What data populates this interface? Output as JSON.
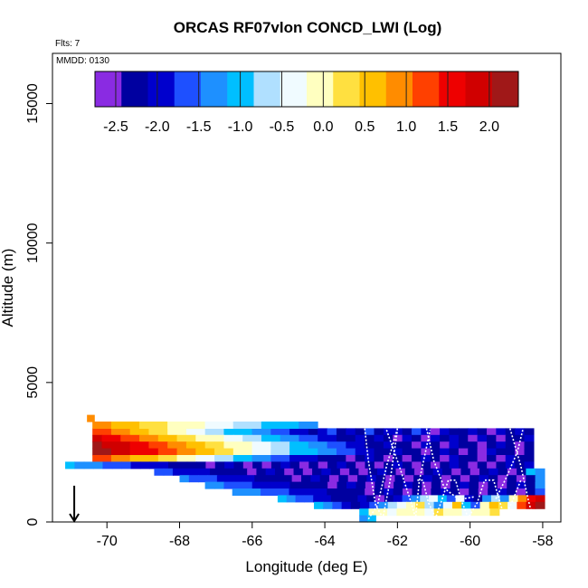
{
  "chart_data": {
    "type": "heatmap",
    "title": "ORCAS RF07vlon CONCD_LWI (Log)",
    "annotations": {
      "flights": "Flts: 7",
      "date": "MMDD: 0130"
    },
    "xlabel": "Longitude (deg E)",
    "ylabel": "Altitude (m)",
    "xlim": [
      -71.5,
      -57.5
    ],
    "ylim": [
      0,
      16800
    ],
    "x_ticks": [
      -70,
      -68,
      -66,
      -64,
      -62,
      -60,
      -58
    ],
    "x_tick_labels": [
      "-70",
      "-68",
      "-66",
      "-64",
      "-62",
      "-60",
      "-58"
    ],
    "y_ticks": [
      0,
      5000,
      10000,
      15000
    ],
    "y_tick_labels": [
      "0",
      "5000",
      "10000",
      "15000"
    ],
    "colorbar": {
      "range": [
        -2.75,
        2.35
      ],
      "ticks": [
        -2.5,
        -2.0,
        -1.5,
        -1.0,
        -0.5,
        0.0,
        0.5,
        1.0,
        1.5,
        2.0
      ],
      "tick_labels": [
        "-2.5",
        "-2.0",
        "-1.5",
        "-1.0",
        "-0.5",
        "0.0",
        "0.5",
        "1.0",
        "1.5",
        "2.0"
      ],
      "colors": [
        "#8a2be2",
        "#0000a0",
        "#0000cd",
        "#1e50ff",
        "#1e90ff",
        "#00bfff",
        "#b0e0ff",
        "#f0fbff",
        "#ffffc0",
        "#ffe040",
        "#ffc000",
        "#ff8c00",
        "#ff4000",
        "#ee0000",
        "#d00000",
        "#a01818"
      ]
    },
    "marker": {
      "type": "arrow-down",
      "longitude": -70.9,
      "altitude": 550
    },
    "cell_size": {
      "dlon": 0.26,
      "dalt": 240
    },
    "cell_rows": [
      {
        "alt": 3120,
        "lon_start": -70.4,
        "lon_end": -58.25,
        "values": [
          1.3,
          1.1,
          0.95,
          0.8,
          0.65,
          0.5,
          0.35,
          0.2,
          0.05,
          -0.1,
          -0.25,
          -0.4,
          -0.55,
          -0.7,
          -0.85,
          -1.0,
          -1.15,
          -1.3,
          -1.45,
          -1.6,
          -1.75,
          -1.9,
          -2.05,
          -2.2,
          -2.1,
          -1.7,
          -2.3,
          -1.9,
          -2.2,
          -1.6,
          -2.4,
          -1.8,
          -2.0,
          -2.3,
          -1.7,
          -2.1,
          -2.5,
          -1.9,
          -2.2,
          -2.4,
          -2.0,
          -2.3,
          -2.6,
          -2.1,
          -2.4,
          -1.8,
          -2.2
        ]
      },
      {
        "alt": 2880,
        "lon_start": -70.4,
        "lon_end": -58.25,
        "values": [
          1.8,
          1.6,
          1.45,
          1.3,
          1.15,
          1.0,
          0.85,
          0.7,
          0.55,
          0.4,
          0.25,
          0.1,
          -0.05,
          -0.2,
          -0.35,
          -0.5,
          -0.65,
          -0.8,
          -0.95,
          -1.1,
          -1.25,
          -1.4,
          -1.55,
          -1.7,
          -1.85,
          -2.0,
          -2.15,
          -2.3,
          -2.1,
          -2.4,
          -1.9,
          -2.2,
          -2.5,
          -2.0,
          -2.3,
          -2.6,
          -2.1,
          -2.4,
          -1.8,
          -2.2,
          -2.5,
          -2.0,
          -2.3,
          -2.6,
          -2.2,
          -2.4,
          -2.0
        ]
      },
      {
        "alt": 2640,
        "lon_start": -70.4,
        "lon_end": -58.25,
        "values": [
          2.1,
          2.0,
          1.9,
          1.75,
          1.6,
          1.45,
          1.3,
          1.15,
          1.0,
          0.85,
          0.7,
          0.55,
          0.4,
          0.25,
          0.1,
          -0.05,
          -0.2,
          -0.35,
          -0.5,
          -0.65,
          -0.8,
          -0.95,
          -1.1,
          -1.25,
          -1.4,
          -1.55,
          -1.7,
          -1.85,
          -2.0,
          -2.15,
          -2.3,
          -2.1,
          -2.4,
          -2.2,
          -2.5,
          -2.0,
          -2.3,
          -2.6,
          -2.1,
          -2.4,
          -2.2,
          -2.5,
          -2.3,
          -2.0,
          -2.4,
          -2.6,
          -2.2
        ]
      },
      {
        "alt": 2400,
        "lon_start": -70.4,
        "lon_end": -58.25,
        "values": [
          2.2,
          2.1,
          2.0,
          1.85,
          1.7,
          1.55,
          1.4,
          1.25,
          1.1,
          0.95,
          0.8,
          0.65,
          0.5,
          0.35,
          0.2,
          0.05,
          -0.1,
          -0.25,
          -0.4,
          -0.55,
          -0.7,
          -0.85,
          -1.0,
          -1.15,
          -1.3,
          -1.45,
          -1.6,
          -1.75,
          -1.9,
          -2.05,
          -2.2,
          -2.35,
          -2.1,
          -2.4,
          -2.2,
          -2.5,
          -2.3,
          -2.0,
          -2.4,
          -2.6,
          -2.2,
          -2.5,
          -2.1,
          -2.4,
          -2.3,
          -2.6,
          -2.2
        ]
      },
      {
        "alt": 2160,
        "lon_start": -70.4,
        "lon_end": -58.25,
        "values": [
          1.3,
          1.2,
          1.05,
          0.9,
          0.75,
          0.6,
          0.45,
          0.3,
          0.15,
          0.0,
          -0.15,
          -0.3,
          -0.45,
          -0.6,
          -0.75,
          -0.9,
          -1.05,
          -1.2,
          -1.35,
          -1.5,
          -1.65,
          -1.8,
          -1.95,
          -2.1,
          -2.25,
          -2.4,
          -2.2,
          -2.5,
          -2.3,
          -2.1,
          -2.4,
          -2.6,
          -2.2,
          -2.5,
          -2.3,
          -2.0,
          -2.4,
          -2.6,
          -2.1,
          -2.4,
          -2.2,
          -2.5,
          -2.3,
          -2.6,
          -2.1,
          -2.4,
          -2.2
        ]
      },
      {
        "alt": 1920,
        "lon_start": -71.15,
        "lon_end": -58.25,
        "values": [
          -1.1,
          -1.2,
          -1.3,
          -1.4,
          -1.5,
          -1.6,
          -1.7,
          -1.8,
          -1.9,
          -2.0,
          -2.1,
          -2.2,
          -2.3,
          -2.4,
          -2.2,
          -2.5,
          -2.3,
          -2.1,
          -2.4,
          -2.6,
          -2.2,
          -2.5,
          -2.3,
          -2.0,
          -2.4,
          -2.6,
          -2.2,
          -2.5,
          -2.3,
          -2.1,
          -2.4,
          -2.6,
          -2.2,
          -2.5,
          -2.3,
          -2.0,
          -2.4,
          -2.6,
          -2.2,
          -2.5,
          -2.3,
          -2.1,
          -2.4,
          -2.6,
          -2.2,
          -2.5,
          -2.3,
          -2.0,
          -2.4,
          -2.1
        ]
      },
      {
        "alt": 1680,
        "lon_start": -68.7,
        "lon_end": -57.95,
        "values": [
          -1.6,
          -1.7,
          -1.8,
          -1.9,
          -2.0,
          -2.1,
          -2.2,
          -2.3,
          -2.4,
          -2.2,
          -2.5,
          -2.3,
          -2.1,
          -2.4,
          -2.6,
          -2.2,
          -2.5,
          -2.3,
          -2.0,
          -2.4,
          -2.6,
          -2.2,
          -2.5,
          -2.3,
          -2.1,
          -2.4,
          -2.6,
          -2.2,
          -2.5,
          -2.3,
          -2.0,
          -2.4,
          -2.6,
          -2.2,
          -2.5,
          -2.3,
          -2.1,
          -2.4,
          -2.6,
          -2.2,
          -1.0,
          -1.4
        ]
      },
      {
        "alt": 1440,
        "lon_start": -68.0,
        "lon_end": -57.95,
        "values": [
          -1.4,
          -1.5,
          -1.6,
          -1.7,
          -1.8,
          -1.9,
          -2.0,
          -2.1,
          -2.2,
          -2.3,
          -2.4,
          -2.2,
          -2.5,
          -2.3,
          -2.1,
          -2.4,
          -2.6,
          -2.2,
          -2.5,
          -2.3,
          -2.0,
          -2.4,
          -2.6,
          -2.2,
          -2.5,
          -2.3,
          -2.1,
          -2.4,
          -2.6,
          -2.2,
          -2.5,
          -2.3,
          -2.0,
          -2.4,
          -2.6,
          -2.2,
          -2.5,
          -2.3,
          -1.2
        ]
      },
      {
        "alt": 1200,
        "lon_start": -67.3,
        "lon_end": -57.95,
        "values": [
          -1.3,
          -1.4,
          -1.5,
          -1.6,
          -1.7,
          -1.8,
          -1.9,
          -2.0,
          -2.1,
          -2.2,
          -2.3,
          -2.4,
          -2.2,
          -2.5,
          -2.3,
          -2.1,
          -2.4,
          -2.6,
          -2.2,
          -2.5,
          -2.3,
          -2.0,
          -2.4,
          -2.6,
          -2.2,
          -2.5,
          -2.3,
          -2.1,
          -2.4,
          -2.6,
          -2.2,
          -2.5,
          -2.3,
          -2.0,
          -2.4,
          -1.4
        ]
      },
      {
        "alt": 960,
        "lon_start": -66.55,
        "lon_end": -57.95,
        "values": [
          -1.2,
          -1.3,
          -1.4,
          -1.5,
          -1.6,
          -1.7,
          -1.8,
          -1.9,
          -2.0,
          -2.1,
          -2.2,
          -2.3,
          -2.4,
          -2.2,
          -2.5,
          -2.3,
          -2.1,
          -2.4,
          -2.6,
          -2.2,
          -2.5,
          -2.3,
          -2.0,
          -2.4,
          -2.6,
          -2.2,
          -2.5,
          -2.3,
          -2.1,
          -2.4,
          -2.6,
          -2.2,
          -1.6
        ]
      },
      {
        "alt": 720,
        "lon_start": -65.3,
        "lon_end": -57.95,
        "values": [
          -1.1,
          -1.3,
          -1.5,
          -1.7,
          -1.9,
          -2.1,
          -2.3,
          -2.2,
          -2.4,
          -2.1,
          -2.3,
          -2.5,
          -2.2,
          -2.0,
          -1.6,
          -1.2,
          -0.8,
          -0.4,
          -1.0,
          -1.6,
          -0.3,
          -1.8,
          -2.2,
          -1.2,
          -0.6,
          -1.4,
          -0.2,
          1.0,
          1.4,
          1.8
        ]
      },
      {
        "alt": 480,
        "lon_start": -64.3,
        "lon_end": -57.95,
        "values": [
          -1.1,
          -1.4,
          -1.7,
          -2.0,
          -2.3,
          -2.0,
          -1.6,
          -1.2,
          -0.8,
          -0.4,
          -0.1,
          0.2,
          -0.6,
          -1.2,
          -0.3,
          0.5,
          -1.0,
          -1.6,
          0.0,
          0.6,
          0.3,
          -0.4,
          1.3,
          1.9,
          2.1
        ]
      },
      {
        "alt": 240,
        "lon_start": -63.05,
        "lon_end": -59.2,
        "values": [
          -1.0,
          -0.2,
          0.0,
          -0.3,
          0.1,
          -0.1,
          0.0,
          -0.4,
          0.2,
          -0.2,
          0.1,
          -0.3,
          0.0,
          -0.1,
          0.2
        ]
      },
      {
        "alt": 0,
        "lon_start": -63.05,
        "lon_end": -62.6,
        "values": [
          -1.2,
          -1.0
        ]
      },
      {
        "alt": 3360,
        "lon_start": -70.4,
        "lon_end": -64.2,
        "values": [
          0.9,
          0.8,
          0.7,
          0.6,
          0.5,
          0.4,
          0.3,
          0.2,
          0.1,
          0.0,
          -0.1,
          -0.2,
          -0.3,
          -0.4,
          -0.5,
          -0.6,
          -0.7,
          -0.8,
          -0.9,
          -1.0,
          -1.1,
          -1.0,
          -1.2,
          -1.3
        ]
      },
      {
        "alt": 3600,
        "lon_start": -70.55,
        "lon_end": -70.35,
        "values": [
          1.0
        ]
      }
    ],
    "flight_tracks": [
      [
        [
          -62.9,
          3350
        ],
        [
          -62.8,
          2200
        ],
        [
          -62.6,
          600
        ],
        [
          -62.4,
          150
        ],
        [
          -62.2,
          1500
        ],
        [
          -62.0,
          3300
        ]
      ],
      [
        [
          -62.3,
          3300
        ],
        [
          -61.95,
          2000
        ],
        [
          -61.65,
          800
        ],
        [
          -61.5,
          150
        ],
        [
          -61.4,
          1450
        ],
        [
          -61.1,
          3300
        ]
      ],
      [
        [
          -61.2,
          3350
        ],
        [
          -61.0,
          2200
        ],
        [
          -60.7,
          1200
        ],
        [
          -60.3,
          800
        ],
        [
          -59.9,
          900
        ]
      ],
      [
        [
          -62.0,
          3350
        ],
        [
          -62.3,
          2000
        ],
        [
          -62.55,
          600
        ],
        [
          -62.8,
          100
        ]
      ],
      [
        [
          -61.45,
          1500
        ],
        [
          -61.3,
          1500
        ],
        [
          -61.15,
          700
        ],
        [
          -60.95,
          150
        ],
        [
          -60.8,
          700
        ],
        [
          -60.6,
          1500
        ],
        [
          -60.4,
          1500
        ],
        [
          -60.25,
          800
        ],
        [
          -60.05,
          150
        ],
        [
          -59.8,
          700
        ],
        [
          -59.6,
          1500
        ],
        [
          -59.35,
          1500
        ],
        [
          -59.2,
          800
        ],
        [
          -59.05,
          150
        ],
        [
          -58.85,
          700
        ],
        [
          -58.6,
          1500
        ]
      ],
      [
        [
          -58.9,
          3350
        ],
        [
          -58.6,
          2000
        ],
        [
          -58.4,
          800
        ],
        [
          -58.3,
          300
        ]
      ],
      [
        [
          -58.55,
          3300
        ],
        [
          -58.7,
          2500
        ],
        [
          -59.0,
          1600
        ],
        [
          -59.3,
          800
        ]
      ]
    ]
  }
}
